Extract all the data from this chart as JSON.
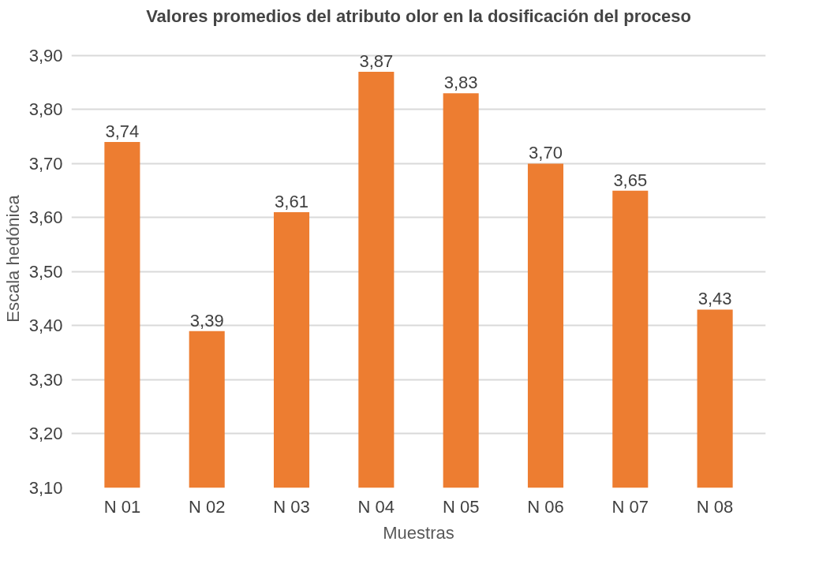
{
  "chart_data": {
    "type": "bar",
    "title": "Valores promedios del atributo olor en la dosificación del proceso",
    "xlabel": "Muestras",
    "ylabel": "Escala hedónica",
    "categories": [
      "N 01",
      "N 02",
      "N 03",
      "N 04",
      "N 05",
      "N 06",
      "N 07",
      "N 08"
    ],
    "values": [
      3.74,
      3.39,
      3.61,
      3.87,
      3.83,
      3.7,
      3.65,
      3.43
    ],
    "color": "#ed7d31",
    "ylim": [
      3.1,
      3.9
    ],
    "yticks": [
      {
        "value": 3.1,
        "label": "3,10"
      },
      {
        "value": 3.2,
        "label": "3,20"
      },
      {
        "value": 3.3,
        "label": "3,30"
      },
      {
        "value": 3.4,
        "label": "3,40"
      },
      {
        "value": 3.5,
        "label": "3,50"
      },
      {
        "value": 3.6,
        "label": "3,60"
      },
      {
        "value": 3.7,
        "label": "3,70"
      },
      {
        "value": 3.8,
        "label": "3,80"
      },
      {
        "value": 3.9,
        "label": "3,90"
      }
    ],
    "value_labels": [
      "3,74",
      "3,39",
      "3,61",
      "3,87",
      "3,83",
      "3,70",
      "3,65",
      "3,43"
    ],
    "grid": "y"
  }
}
